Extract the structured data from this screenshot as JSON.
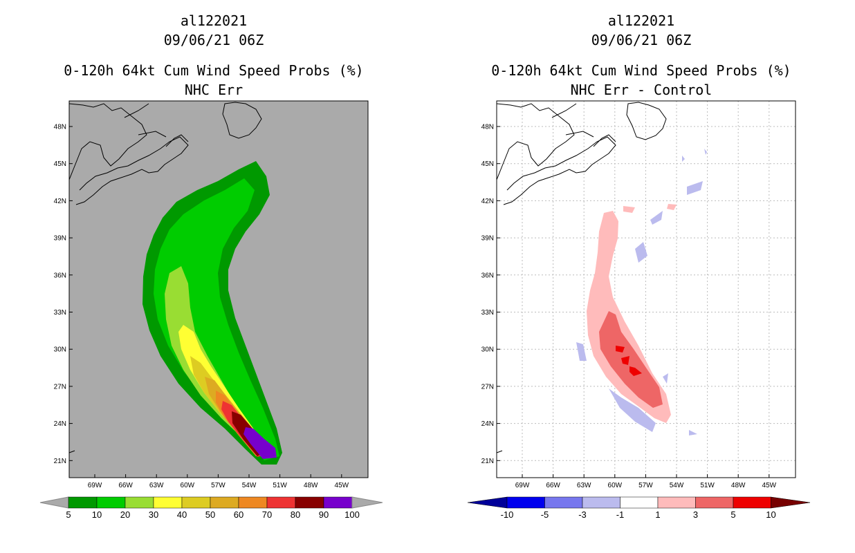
{
  "panels": [
    {
      "storm_id": "al122021",
      "datetime": "09/06/21 06Z",
      "product": "0-120h 64kt Cum Wind Speed Probs (%)",
      "subtitle": "NHC Err",
      "lat_labels": [
        "48N",
        "45N",
        "42N",
        "39N",
        "36N",
        "33N",
        "30N",
        "27N",
        "24N",
        "21N"
      ],
      "lon_labels": [
        "69W",
        "66W",
        "63W",
        "60W",
        "57W",
        "54W",
        "51W",
        "48W",
        "45W"
      ],
      "colorbar": {
        "labels": [
          "5",
          "10",
          "20",
          "30",
          "40",
          "50",
          "60",
          "70",
          "80",
          "90",
          "100"
        ],
        "colors": [
          "#009900",
          "#00cc00",
          "#99dd33",
          "#ffff33",
          "#ddcc22",
          "#ddaa22",
          "#ee8822",
          "#ee3333",
          "#880000",
          "#7700cc"
        ],
        "end_color": "#aaaaaa"
      }
    },
    {
      "storm_id": "al122021",
      "datetime": "09/06/21 06Z",
      "product": "0-120h 64kt Cum Wind Speed Probs (%)",
      "subtitle": "NHC Err - Control",
      "lat_labels": [
        "48N",
        "45N",
        "42N",
        "39N",
        "36N",
        "33N",
        "30N",
        "27N",
        "24N",
        "21N"
      ],
      "lon_labels": [
        "69W",
        "66W",
        "63W",
        "60W",
        "57W",
        "54W",
        "51W",
        "48W",
        "45W"
      ],
      "colorbar": {
        "labels": [
          "-10",
          "-5",
          "-3",
          "-1",
          "1",
          "3",
          "5",
          "10"
        ],
        "colors": [
          "#0000cc",
          "#0000ee",
          "#7777ee",
          "#bbbbee",
          "#ffffff",
          "#ffbbbb",
          "#ee6666",
          "#ee0000"
        ],
        "low_end_color": "#000099",
        "high_end_color": "#770000"
      }
    }
  ]
}
